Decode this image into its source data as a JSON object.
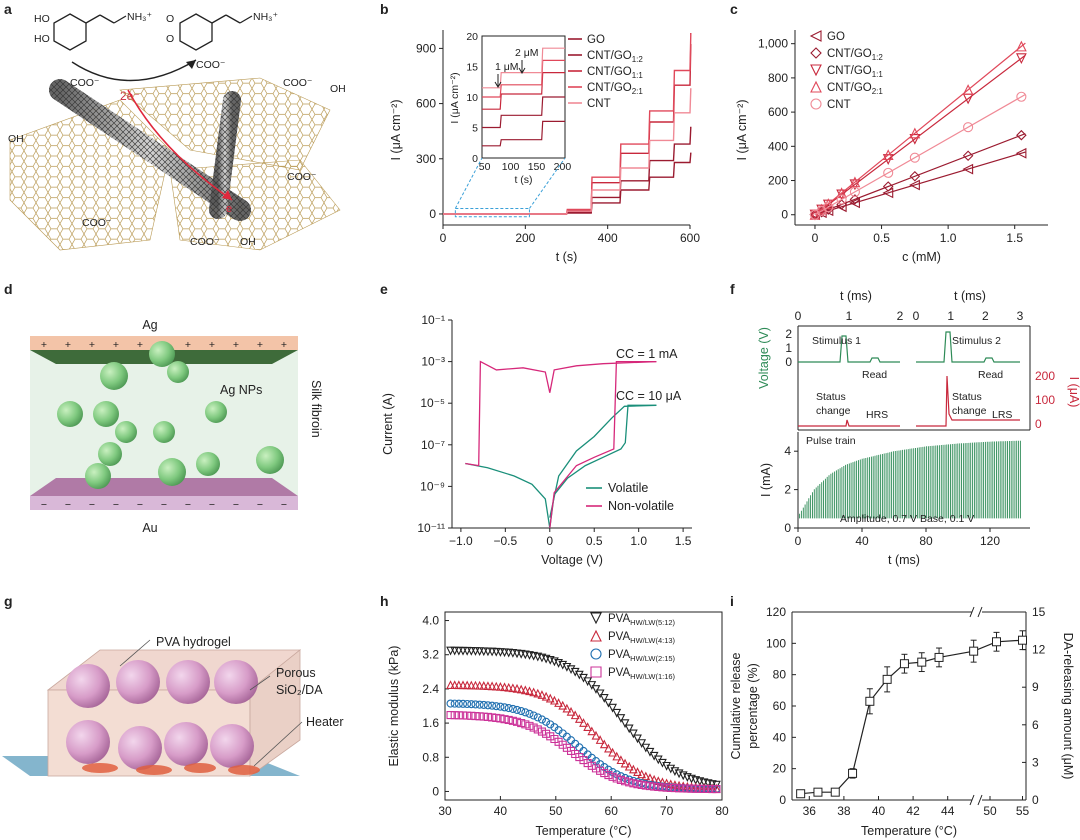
{
  "panels": {
    "a": {
      "label": "a",
      "reaction_arrow": "2e⁻",
      "electron": "e",
      "groups": [
        "COO⁻",
        "COO⁻",
        "COO⁻",
        "COO⁻",
        "COO⁻",
        "COO⁻",
        "OH",
        "OH",
        "OH"
      ],
      "molecule_left": {
        "sub1": "HO",
        "sub2": "HO",
        "tail": "NH₃⁺"
      },
      "molecule_right": {
        "sub1": "O",
        "sub2": "O",
        "tail": "NH₃⁺"
      }
    },
    "d": {
      "label": "d",
      "top": "Ag",
      "bottom": "Au",
      "particles": "Ag NPs",
      "matrix": "Silk fibroin",
      "plus": "+",
      "minus": "−"
    },
    "g": {
      "label": "g",
      "callouts": [
        "PVA hydrogel",
        "Porous",
        "SiO₂/DA",
        "Heater"
      ]
    }
  },
  "colors": {
    "red_dark": "#9b1b30",
    "red": "#c8283c",
    "red_mid": "#e0485a",
    "red_light": "#f08a96",
    "teal": "#1a8f7a",
    "pink": "#d6287a",
    "green": "#2e8b57",
    "blue_c": "#1f6fb0",
    "magenta": "#cc3399",
    "peach": "#f3c4a8",
    "lavender": "#d9b8d8",
    "sphere": "#7fc97f"
  },
  "chart_data": [
    {
      "panel": "b",
      "type": "line",
      "xlabel": "t (s)",
      "ylabel": "I (μA cm⁻²)",
      "xlim": [
        0,
        600
      ],
      "ylim": [
        -60,
        1000
      ],
      "xticks": [
        0,
        200,
        400,
        600
      ],
      "yticks": [
        0,
        300,
        600,
        900
      ],
      "series": [
        {
          "name": "GO",
          "steps": [
            [
              0,
              0
            ],
            [
              300,
              5
            ],
            [
              360,
              60
            ],
            [
              430,
              130
            ],
            [
              500,
              200
            ],
            [
              560,
              280
            ],
            [
              600,
              330
            ]
          ]
        },
        {
          "name": "CNT/GO1:2",
          "steps": [
            [
              0,
              0
            ],
            [
              300,
              10
            ],
            [
              360,
              90
            ],
            [
              430,
              180
            ],
            [
              500,
              290
            ],
            [
              560,
              380
            ],
            [
              600,
              470
            ]
          ]
        },
        {
          "name": "CNT/GO1:1",
          "steps": [
            [
              0,
              0
            ],
            [
              300,
              20
            ],
            [
              360,
              170
            ],
            [
              430,
              330
            ],
            [
              500,
              500
            ],
            [
              560,
              700
            ],
            [
              600,
              920
            ]
          ]
        },
        {
          "name": "CNT/GO2:1",
          "steps": [
            [
              0,
              0
            ],
            [
              300,
              25
            ],
            [
              360,
              200
            ],
            [
              430,
              380
            ],
            [
              500,
              560
            ],
            [
              560,
              780
            ],
            [
              600,
              980
            ]
          ]
        },
        {
          "name": "CNT",
          "steps": [
            [
              0,
              0
            ],
            [
              300,
              15
            ],
            [
              360,
              130
            ],
            [
              430,
              250
            ],
            [
              500,
              400
            ],
            [
              560,
              550
            ],
            [
              600,
              680
            ]
          ]
        }
      ],
      "legend": [
        "GO",
        "CNT/GO",
        "CNT/GO",
        "CNT/GO",
        "CNT"
      ],
      "legend_sub": [
        "",
        "1:2",
        "1:1",
        "2:1",
        ""
      ],
      "inset": {
        "xlabel": "t (s)",
        "ylabel": "I (μA cm⁻²)",
        "xlim": [
          45,
          205
        ],
        "ylim": [
          0,
          20
        ],
        "xticks": [
          50,
          100,
          150,
          200
        ],
        "yticks": [
          0,
          5,
          10,
          15,
          20
        ],
        "annotations": [
          "1 μM",
          "2 μM"
        ]
      }
    },
    {
      "panel": "c",
      "type": "scatter",
      "xlabel": "c (mM)",
      "ylabel": "I (μA cm⁻²)",
      "xlim": [
        -0.15,
        1.75
      ],
      "ylim": [
        -60,
        1080
      ],
      "xticks": [
        0,
        0.5,
        1.0,
        1.5
      ],
      "xtick_labels": [
        "0",
        "0.5",
        "1.0",
        "1.5"
      ],
      "yticks": [
        0,
        200,
        400,
        600,
        800,
        1000
      ],
      "ytick_labels": [
        "0",
        "200",
        "400",
        "600",
        "800",
        "1,000"
      ],
      "x": [
        0,
        0.05,
        0.1,
        0.2,
        0.3,
        0.55,
        0.75,
        1.15,
        1.55
      ],
      "series": [
        {
          "name": "GO",
          "slope": 232
        },
        {
          "name": "CNT/GO1:2",
          "slope": 300
        },
        {
          "name": "CNT/GO1:1",
          "slope": 590
        },
        {
          "name": "CNT/GO2:1",
          "slope": 635
        },
        {
          "name": "CNT",
          "slope": 445
        }
      ],
      "legend": [
        "GO",
        "CNT/GO",
        "CNT/GO",
        "CNT/GO",
        "CNT"
      ],
      "legend_sub": [
        "",
        "1:2",
        "1:1",
        "2:1",
        ""
      ]
    },
    {
      "panel": "e",
      "type": "line",
      "xlabel": "Voltage (V)",
      "ylabel": "Current (A)",
      "xlim": [
        -1.1,
        1.6
      ],
      "ylog": [
        -11,
        -1
      ],
      "xticks": [
        -1.0,
        -0.5,
        0,
        0.5,
        1.0,
        1.5
      ],
      "xtick_labels": [
        "−1.0",
        "−0.5",
        "0",
        "0.5",
        "1.0",
        "1.5"
      ],
      "yticks": [
        -11,
        -9,
        -7,
        -5,
        -3,
        -1
      ],
      "ytick_labels": [
        "10⁻¹¹",
        "10⁻⁹",
        "10⁻⁷",
        "10⁻⁵",
        "10⁻³",
        "10⁻¹"
      ],
      "annotations": [
        "CC = 1 mA",
        "CC = 10 μA"
      ],
      "series": [
        {
          "name": "Volatile"
        },
        {
          "name": "Non-volatile"
        }
      ]
    },
    {
      "panel": "f",
      "type": "line",
      "top_axis_label": "t (ms)",
      "top_ticks_left": [
        "0",
        "1",
        "2"
      ],
      "top_ticks_right": [
        "0",
        "1",
        "2",
        "3"
      ],
      "voltage_label": "Voltage (V)",
      "voltage_ticks": [
        "0",
        "1",
        "2"
      ],
      "current_label": "I (μA)",
      "current_ticks": [
        "0",
        "100",
        "200"
      ],
      "annotations": [
        "Stimulus 1",
        "Read",
        "Stimulus 2",
        "Read",
        "Status",
        "change",
        "HRS",
        "Status",
        "change",
        "LRS"
      ],
      "pulse_panel": {
        "title": "Pulse train",
        "xlabel": "t (ms)",
        "ylabel": "I (mA)",
        "xlim": [
          0,
          145
        ],
        "ylim": [
          0,
          5
        ],
        "xticks": [
          0,
          40,
          80,
          120
        ],
        "yticks": [
          0,
          2,
          4
        ],
        "note": "Amplitude, 0.7 V   Base, 0.1 V",
        "envelope": [
          [
            0,
            0.6
          ],
          [
            5,
            1.3
          ],
          [
            10,
            2.0
          ],
          [
            20,
            2.8
          ],
          [
            30,
            3.3
          ],
          [
            40,
            3.6
          ],
          [
            60,
            4.0
          ],
          [
            80,
            4.25
          ],
          [
            100,
            4.4
          ],
          [
            120,
            4.5
          ],
          [
            140,
            4.55
          ]
        ]
      }
    },
    {
      "panel": "h",
      "type": "scatter",
      "xlabel": "Temperature (°C)",
      "ylabel": "Elastic modulus (kPa)",
      "xlim": [
        30,
        80
      ],
      "ylim": [
        -0.2,
        4.2
      ],
      "xticks": [
        30,
        40,
        50,
        60,
        70,
        80
      ],
      "yticks": [
        0,
        0.8,
        1.6,
        2.4,
        3.2,
        4.0
      ],
      "ytick_labels": [
        "0",
        "0.8",
        "1.6",
        "2.4",
        "3.2",
        "4.0"
      ],
      "series": [
        {
          "name": "PVA",
          "sub": "HW/LW(5:12)",
          "plateau": 3.25,
          "mid": 62,
          "width": 5
        },
        {
          "name": "PVA",
          "sub": "HW/LW(4:13)",
          "plateau": 2.45,
          "mid": 57.5,
          "width": 4.5
        },
        {
          "name": "PVA",
          "sub": "HW/LW(2:15)",
          "plateau": 2.02,
          "mid": 54,
          "width": 4.5
        },
        {
          "name": "PVA",
          "sub": "HW/LW(1:16)",
          "plateau": 1.75,
          "mid": 53,
          "width": 4.5
        }
      ]
    },
    {
      "panel": "i",
      "type": "line",
      "xlabel": "Temperature (°C)",
      "ylabel": "Cumulative release",
      "ylabel2": "percentage (%)",
      "y2label": "DA-releasing amount (μM)",
      "xticks": [
        36,
        38,
        40,
        42,
        44,
        50,
        55
      ],
      "yticks": [
        0,
        20,
        40,
        60,
        80,
        100,
        120
      ],
      "y2ticks": [
        0,
        3,
        6,
        9,
        12,
        15
      ],
      "x": [
        35.5,
        36.5,
        37.5,
        38.5,
        39.5,
        40.5,
        41.5,
        42.5,
        43.5,
        45.5,
        51,
        55
      ],
      "y": [
        4,
        5,
        5,
        17,
        63,
        77,
        87,
        88,
        91,
        95,
        101,
        102
      ],
      "err": [
        2,
        2,
        2,
        3,
        8,
        8,
        6,
        6,
        6,
        7,
        6,
        6
      ]
    }
  ]
}
